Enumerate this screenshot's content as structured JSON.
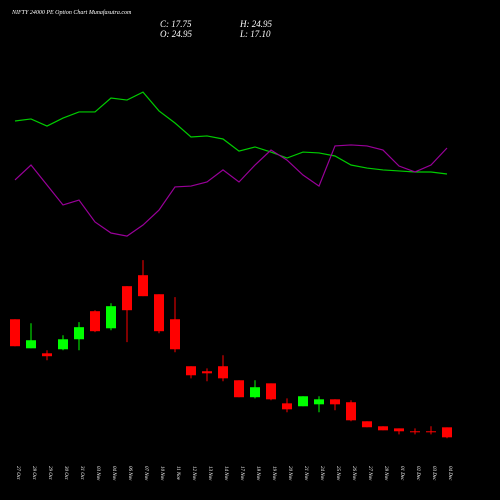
{
  "header": {
    "title": "NIFTY 24000  PE Option  Chart Munafasutra.com",
    "close": "C: 17.75",
    "high": "H: 24.95",
    "open": "O: 24.95",
    "low": "L: 17.10"
  },
  "chart_data": {
    "type": "candlestick",
    "categories": [
      "27 Oct",
      "28 Oct",
      "29 Oct",
      "30 Oct",
      "31 Oct",
      "03 Nov",
      "04 Nov",
      "06 Nov",
      "07 Nov",
      "10 Nov",
      "11 Nov",
      "12 Nov",
      "13 Nov",
      "14 Nov",
      "17 Nov",
      "18 Nov",
      "19 Nov",
      "20 Nov",
      "21 Nov",
      "24 Nov",
      "25 Nov",
      "26 Nov",
      "27 Nov",
      "28 Nov",
      "01 Dec",
      "02 Dec",
      "03 Dec",
      "04 Dec"
    ],
    "open": [
      102.7,
      81.8,
      78.2,
      81.1,
      88.3,
      108.5,
      96.2,
      126.5,
      134.4,
      120.7,
      102.7,
      68.9,
      65.3,
      68.9,
      58.8,
      46.6,
      56.6,
      42.2,
      40.1,
      41.5,
      45.1,
      43.0,
      29.3,
      25.7,
      24.2,
      22.1,
      22.1,
      24.95
    ],
    "high": [
      102.7,
      99.8,
      80.4,
      91.2,
      100.6,
      109.2,
      114.2,
      126.5,
      145.2,
      120.7,
      118.6,
      68.9,
      67.4,
      76.8,
      58.8,
      58.8,
      56.6,
      45.8,
      47.3,
      47.3,
      45.1,
      44.4,
      29.3,
      25.7,
      24.2,
      24.2,
      25.7,
      24.95
    ],
    "low": [
      83.3,
      81.8,
      73.2,
      80.4,
      80.4,
      93.4,
      94.8,
      86.2,
      119.3,
      92.6,
      79.0,
      60.2,
      58.1,
      58.1,
      46.6,
      45.8,
      44.4,
      35.8,
      40.1,
      35.8,
      37.2,
      29.3,
      25.0,
      22.8,
      19.9,
      19.9,
      19.9,
      17.1
    ],
    "close": [
      83.3,
      87.6,
      76.1,
      88.3,
      97.0,
      94.1,
      112.1,
      109.2,
      119.3,
      94.1,
      81.1,
      62.4,
      63.8,
      60.2,
      46.6,
      53.8,
      45.1,
      37.9,
      47.3,
      45.1,
      41.5,
      30.0,
      25.0,
      22.8,
      22.1,
      21.4,
      21.4,
      17.75
    ],
    "up_color": "#00ff00",
    "down_color": "#ff0000",
    "ylim": [
      0,
      200
    ],
    "indicators": [
      {
        "color": "#00cc00",
        "values": [
          75.9,
          77.1,
          72.9,
          77.6,
          81.2,
          81.2,
          89.4,
          88.2,
          92.9,
          81.8,
          74.7,
          66.5,
          67.1,
          65.3,
          58.2,
          60.6,
          57.6,
          54.1,
          57.6,
          57.1,
          55.3,
          50.0,
          48.2,
          47.1,
          46.5,
          45.9,
          45.9,
          44.7
        ]
      },
      {
        "color": "#990099",
        "values": [
          41.2,
          50.0,
          38.2,
          26.5,
          29.4,
          16.5,
          10.0,
          8.2,
          14.7,
          23.5,
          37.1,
          37.6,
          40.0,
          47.1,
          40.0,
          50.0,
          58.8,
          52.9,
          44.1,
          37.6,
          61.2,
          61.8,
          61.2,
          58.8,
          49.4,
          45.9,
          50.0,
          60.0
        ]
      }
    ],
    "indicator_ylim": [
      0,
      100
    ]
  }
}
